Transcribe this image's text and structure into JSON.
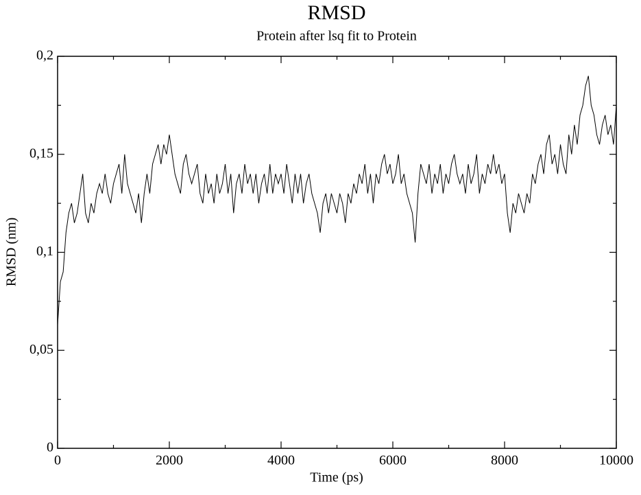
{
  "chart_data": {
    "type": "line",
    "title": "RMSD",
    "subtitle": "Protein after lsq fit to Protein",
    "xlabel": "Time (ps)",
    "ylabel": "RMSD (nm)",
    "color": "#000000",
    "xlim": [
      0,
      10000
    ],
    "ylim": [
      0,
      0.2
    ],
    "xticks": [
      0,
      2000,
      4000,
      6000,
      8000,
      10000
    ],
    "yticks": [
      0,
      {
        "value": 0.05,
        "label": "0,05"
      },
      {
        "value": 0.1,
        "label": "0,1"
      },
      {
        "value": 0.15,
        "label": "0,15"
      },
      {
        "value": 0.2,
        "label": "0,2"
      }
    ],
    "xminor_ticks": [
      1000,
      3000,
      5000,
      7000,
      9000
    ],
    "yminor_ticks": [
      0.025,
      0.075,
      0.125,
      0.175
    ],
    "x": [
      0,
      50,
      100,
      150,
      200,
      250,
      300,
      350,
      400,
      450,
      500,
      550,
      600,
      650,
      700,
      750,
      800,
      850,
      900,
      950,
      1000,
      1050,
      1100,
      1150,
      1200,
      1250,
      1300,
      1350,
      1400,
      1450,
      1500,
      1550,
      1600,
      1650,
      1700,
      1750,
      1800,
      1850,
      1900,
      1950,
      2000,
      2050,
      2100,
      2150,
      2200,
      2250,
      2300,
      2350,
      2400,
      2450,
      2500,
      2550,
      2600,
      2650,
      2700,
      2750,
      2800,
      2850,
      2900,
      2950,
      3000,
      3050,
      3100,
      3150,
      3200,
      3250,
      3300,
      3350,
      3400,
      3450,
      3500,
      3550,
      3600,
      3650,
      3700,
      3750,
      3800,
      3850,
      3900,
      3950,
      4000,
      4050,
      4100,
      4150,
      4200,
      4250,
      4300,
      4350,
      4400,
      4450,
      4500,
      4550,
      4600,
      4650,
      4700,
      4750,
      4800,
      4850,
      4900,
      4950,
      5000,
      5050,
      5100,
      5150,
      5200,
      5250,
      5300,
      5350,
      5400,
      5450,
      5500,
      5550,
      5600,
      5650,
      5700,
      5750,
      5800,
      5850,
      5900,
      5950,
      6000,
      6050,
      6100,
      6150,
      6200,
      6250,
      6300,
      6350,
      6400,
      6450,
      6500,
      6550,
      6600,
      6650,
      6700,
      6750,
      6800,
      6850,
      6900,
      6950,
      7000,
      7050,
      7100,
      7150,
      7200,
      7250,
      7300,
      7350,
      7400,
      7450,
      7500,
      7550,
      7600,
      7650,
      7700,
      7750,
      7800,
      7850,
      7900,
      7950,
      8000,
      8050,
      8100,
      8150,
      8200,
      8250,
      8300,
      8350,
      8400,
      8450,
      8500,
      8550,
      8600,
      8650,
      8700,
      8750,
      8800,
      8850,
      8900,
      8950,
      9000,
      9050,
      9100,
      9150,
      9200,
      9250,
      9300,
      9350,
      9400,
      9450,
      9500,
      9550,
      9600,
      9650,
      9700,
      9750,
      9800,
      9850,
      9900,
      9950,
      10000
    ],
    "values": [
      0.063,
      0.085,
      0.09,
      0.11,
      0.12,
      0.125,
      0.115,
      0.12,
      0.13,
      0.14,
      0.12,
      0.115,
      0.125,
      0.12,
      0.13,
      0.135,
      0.13,
      0.14,
      0.13,
      0.125,
      0.135,
      0.14,
      0.145,
      0.13,
      0.15,
      0.135,
      0.13,
      0.125,
      0.12,
      0.13,
      0.115,
      0.13,
      0.14,
      0.13,
      0.145,
      0.15,
      0.155,
      0.145,
      0.155,
      0.15,
      0.16,
      0.15,
      0.14,
      0.135,
      0.13,
      0.145,
      0.15,
      0.14,
      0.135,
      0.14,
      0.145,
      0.13,
      0.125,
      0.14,
      0.13,
      0.135,
      0.125,
      0.14,
      0.13,
      0.135,
      0.145,
      0.13,
      0.14,
      0.12,
      0.135,
      0.14,
      0.13,
      0.145,
      0.135,
      0.14,
      0.13,
      0.14,
      0.125,
      0.135,
      0.14,
      0.13,
      0.145,
      0.13,
      0.14,
      0.135,
      0.14,
      0.13,
      0.145,
      0.135,
      0.125,
      0.14,
      0.13,
      0.14,
      0.125,
      0.135,
      0.14,
      0.13,
      0.125,
      0.12,
      0.11,
      0.125,
      0.13,
      0.12,
      0.13,
      0.125,
      0.12,
      0.13,
      0.125,
      0.115,
      0.13,
      0.125,
      0.135,
      0.13,
      0.14,
      0.135,
      0.145,
      0.13,
      0.14,
      0.125,
      0.14,
      0.135,
      0.145,
      0.15,
      0.14,
      0.145,
      0.135,
      0.14,
      0.15,
      0.135,
      0.14,
      0.13,
      0.125,
      0.12,
      0.105,
      0.13,
      0.145,
      0.14,
      0.135,
      0.145,
      0.13,
      0.14,
      0.135,
      0.145,
      0.13,
      0.14,
      0.135,
      0.145,
      0.15,
      0.14,
      0.135,
      0.14,
      0.13,
      0.145,
      0.135,
      0.14,
      0.15,
      0.13,
      0.14,
      0.135,
      0.145,
      0.14,
      0.15,
      0.14,
      0.145,
      0.135,
      0.14,
      0.12,
      0.11,
      0.125,
      0.12,
      0.13,
      0.125,
      0.12,
      0.13,
      0.125,
      0.14,
      0.135,
      0.145,
      0.15,
      0.14,
      0.155,
      0.16,
      0.145,
      0.15,
      0.14,
      0.155,
      0.145,
      0.14,
      0.16,
      0.15,
      0.165,
      0.155,
      0.17,
      0.175,
      0.185,
      0.19,
      0.175,
      0.17,
      0.16,
      0.155,
      0.165,
      0.17,
      0.16,
      0.165,
      0.155,
      0.175
    ]
  }
}
